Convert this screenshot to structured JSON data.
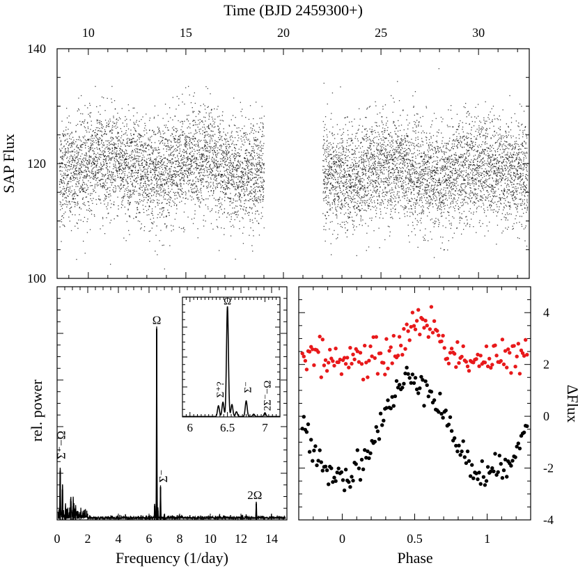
{
  "chart_data": [
    {
      "type": "scatter",
      "panel": "light-curve",
      "title": "",
      "xlabel": "Time (BJD 2459300+)",
      "ylabel": "SAP Flux",
      "xlim": [
        8.4,
        32.6
      ],
      "ylim": [
        100,
        140
      ],
      "x_ticks": [
        "10",
        "15",
        "20",
        "25",
        "30"
      ],
      "y_ticks": [
        "100",
        "120",
        "140"
      ],
      "x_label_position": "top",
      "series": [
        {
          "color": "#000000",
          "marker": "dot",
          "segments": [
            {
              "x_start": 8.5,
              "x_end": 19.0,
              "y_mean": 119.5,
              "y_scatter": 4.5,
              "y_min": 101.5,
              "y_max": 133.5
            },
            {
              "x_start": 22.0,
              "x_end": 32.5,
              "y_mean": 118.5,
              "y_scatter": 4.5,
              "y_min": 102.0,
              "y_max": 138.0
            }
          ]
        }
      ]
    },
    {
      "type": "line",
      "panel": "power-spectrum",
      "title": "",
      "xlabel": "Frequency (1/day)",
      "ylabel": "rel. power",
      "xlim": [
        0,
        15
      ],
      "ylim": [
        0,
        1
      ],
      "x_ticks": [
        "0",
        "2",
        "4",
        "6",
        "8",
        "10",
        "12",
        "14"
      ],
      "peaks": [
        {
          "x": 0.2,
          "y": 0.21
        },
        {
          "x": 0.35,
          "y": 0.13
        },
        {
          "x": 0.55,
          "y": 0.05
        },
        {
          "x": 0.9,
          "y": 0.08
        },
        {
          "x": 1.05,
          "y": 0.06
        },
        {
          "x": 1.2,
          "y": 0.04
        },
        {
          "x": 6.37,
          "y": 0.06
        },
        {
          "x": 6.5,
          "y": 0.82
        },
        {
          "x": 6.58,
          "y": 0.04
        },
        {
          "x": 6.75,
          "y": 0.14
        },
        {
          "x": 7.0,
          "y": 0.02
        },
        {
          "x": 13.0,
          "y": 0.07
        }
      ],
      "annotations": [
        {
          "text": "Σ⁻−Ω",
          "x": 0.3,
          "y": 0.26,
          "rotate": true
        },
        {
          "text": "Ω",
          "x": 6.5,
          "y": 0.84,
          "rotate": false
        },
        {
          "text": "Σ⁻",
          "x": 6.95,
          "y": 0.16,
          "rotate": true
        },
        {
          "text": "2Ω",
          "x": 12.9,
          "y": 0.09,
          "rotate": false
        }
      ],
      "inset": {
        "xlim": [
          5.9,
          7.2
        ],
        "ylim": [
          0,
          1
        ],
        "x_ticks": [
          "6",
          "6.5",
          "7"
        ],
        "peaks": [
          {
            "x": 6.38,
            "y": 0.09
          },
          {
            "x": 6.44,
            "y": 0.12
          },
          {
            "x": 6.5,
            "y": 0.92
          },
          {
            "x": 6.56,
            "y": 0.1
          },
          {
            "x": 6.62,
            "y": 0.04
          },
          {
            "x": 6.75,
            "y": 0.13
          },
          {
            "x": 6.85,
            "y": 0.02
          },
          {
            "x": 7.0,
            "y": 0.03
          }
        ],
        "annotations": [
          {
            "text": "Σ⁺?",
            "x": 6.4,
            "y": 0.16,
            "rotate": true
          },
          {
            "text": "Ω",
            "x": 6.5,
            "y": 0.94,
            "rotate": false
          },
          {
            "text": "Σ⁻",
            "x": 6.77,
            "y": 0.2,
            "rotate": true
          },
          {
            "text": "2Σ⁻−Ω",
            "x": 7.03,
            "y": 0.05,
            "rotate": true
          }
        ]
      }
    },
    {
      "type": "scatter",
      "panel": "phase-folded",
      "title": "",
      "xlabel": "Phase",
      "ylabel": "ΔFlux",
      "xlim": [
        -0.3,
        1.3
      ],
      "ylim": [
        -4,
        5
      ],
      "x_ticks": [
        "0",
        "0.5",
        "1"
      ],
      "y_ticks": [
        "-4",
        "-2",
        "0",
        "2",
        "4"
      ],
      "series": [
        {
          "color": "#e8191b",
          "offset": 2.5,
          "model": "bump",
          "points_per_cycle": 100,
          "x_range": [
            -0.28,
            1.28
          ],
          "min": 2.2,
          "max": 3.7,
          "peak_phase": 0.55,
          "scatter": 0.35
        },
        {
          "color": "#000000",
          "offset": 0,
          "model": "double-dip",
          "points_per_cycle": 100,
          "x_range": [
            -0.28,
            1.28
          ],
          "min": -2.3,
          "max": 1.5,
          "peak_phase": 0.45,
          "dip_phases": [
            0.0,
            0.97
          ],
          "scatter": 0.3
        }
      ]
    }
  ]
}
